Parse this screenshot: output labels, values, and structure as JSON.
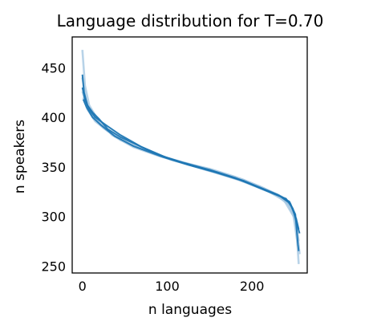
{
  "chart_data": {
    "type": "line",
    "title": "Language distribution for T=0.70",
    "xlabel": "n languages",
    "ylabel": "n speakers",
    "xlim": [
      -12,
      265
    ],
    "ylim": [
      243,
      481
    ],
    "xticks": [
      0,
      100,
      200
    ],
    "yticks": [
      250,
      300,
      350,
      400,
      450
    ],
    "grid": false,
    "legend": "none",
    "colors": {
      "dark": "#1f77b4",
      "light": "#a6c8e2"
    },
    "series": [
      {
        "style": "light",
        "values": [
          [
            0,
            468
          ],
          [
            3,
            432
          ],
          [
            8,
            412
          ],
          [
            18,
            398
          ],
          [
            35,
            382
          ],
          [
            60,
            370
          ],
          [
            90,
            361
          ],
          [
            120,
            354
          ],
          [
            150,
            348
          ],
          [
            180,
            340
          ],
          [
            210,
            330
          ],
          [
            230,
            322
          ],
          [
            245,
            313
          ],
          [
            252,
            290
          ],
          [
            255,
            252
          ]
        ]
      },
      {
        "style": "light",
        "values": [
          [
            0,
            440
          ],
          [
            4,
            418
          ],
          [
            10,
            405
          ],
          [
            22,
            392
          ],
          [
            40,
            380
          ],
          [
            70,
            368
          ],
          [
            100,
            359
          ],
          [
            130,
            352
          ],
          [
            160,
            345
          ],
          [
            190,
            337
          ],
          [
            215,
            328
          ],
          [
            235,
            320
          ],
          [
            247,
            308
          ],
          [
            253,
            286
          ],
          [
            256,
            262
          ]
        ]
      },
      {
        "style": "light",
        "values": [
          [
            0,
            426
          ],
          [
            5,
            412
          ],
          [
            12,
            401
          ],
          [
            25,
            389
          ],
          [
            45,
            377
          ],
          [
            75,
            366
          ],
          [
            105,
            357
          ],
          [
            135,
            350
          ],
          [
            165,
            342
          ],
          [
            195,
            334
          ],
          [
            220,
            325
          ],
          [
            238,
            316
          ],
          [
            249,
            300
          ],
          [
            254,
            270
          ]
        ]
      },
      {
        "style": "light",
        "values": [
          [
            1,
            420
          ],
          [
            6,
            408
          ],
          [
            15,
            396
          ],
          [
            30,
            386
          ],
          [
            55,
            373
          ],
          [
            85,
            363
          ],
          [
            115,
            355
          ],
          [
            145,
            347
          ],
          [
            175,
            340
          ],
          [
            205,
            330
          ],
          [
            228,
            322
          ],
          [
            243,
            312
          ],
          [
            251,
            296
          ],
          [
            255,
            275
          ]
        ]
      },
      {
        "style": "dark",
        "values": [
          [
            0,
            443
          ],
          [
            2,
            425
          ],
          [
            6,
            412
          ],
          [
            12,
            405
          ],
          [
            20,
            398
          ],
          [
            30,
            388
          ],
          [
            45,
            380
          ],
          [
            65,
            372
          ],
          [
            90,
            362
          ],
          [
            120,
            354
          ],
          [
            150,
            347
          ],
          [
            180,
            339
          ],
          [
            205,
            330
          ],
          [
            225,
            323
          ],
          [
            240,
            318
          ],
          [
            248,
            308
          ],
          [
            253,
            292
          ],
          [
            256,
            283
          ]
        ]
      },
      {
        "style": "dark",
        "values": [
          [
            0,
            430
          ],
          [
            3,
            418
          ],
          [
            8,
            408
          ],
          [
            15,
            400
          ],
          [
            28,
            392
          ],
          [
            45,
            382
          ],
          [
            70,
            370
          ],
          [
            100,
            359
          ],
          [
            130,
            351
          ],
          [
            160,
            344
          ],
          [
            190,
            336
          ],
          [
            215,
            327
          ],
          [
            232,
            321
          ],
          [
            245,
            313
          ],
          [
            252,
            298
          ],
          [
            255,
            287
          ]
        ]
      },
      {
        "style": "dark",
        "values": [
          [
            1,
            418
          ],
          [
            5,
            410
          ],
          [
            12,
            400
          ],
          [
            22,
            392
          ],
          [
            38,
            381
          ],
          [
            60,
            371
          ],
          [
            95,
            360
          ],
          [
            125,
            352
          ],
          [
            155,
            345
          ],
          [
            185,
            337
          ],
          [
            210,
            329
          ],
          [
            230,
            322
          ],
          [
            244,
            315
          ],
          [
            251,
            302
          ],
          [
            254,
            272
          ],
          [
            255,
            265
          ]
        ]
      }
    ]
  }
}
